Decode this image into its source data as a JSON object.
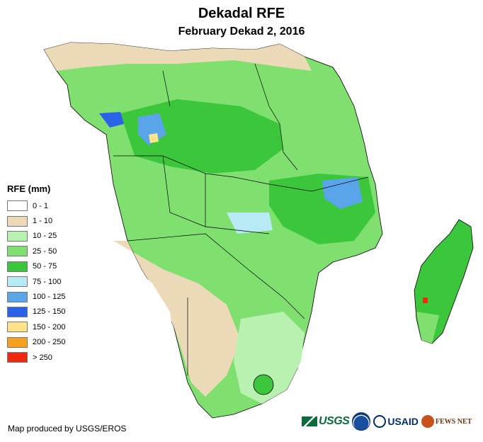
{
  "title": "Dekadal RFE",
  "subtitle": "February Dekad 2, 2016",
  "legend": {
    "title": "RFE (mm)",
    "items": [
      {
        "label": "0 - 1",
        "color": "#ffffff"
      },
      {
        "label": "1 - 10",
        "color": "#ecd9b8"
      },
      {
        "label": "10 - 25",
        "color": "#b9f2b0"
      },
      {
        "label": "25 - 50",
        "color": "#7fe06f"
      },
      {
        "label": "50 - 75",
        "color": "#3cc63c"
      },
      {
        "label": "75 - 100",
        "color": "#b8eaf5"
      },
      {
        "label": "100 - 125",
        "color": "#5aa5ea"
      },
      {
        "label": "125 - 150",
        "color": "#2a62e8"
      },
      {
        "label": "150 - 200",
        "color": "#ffe38a"
      },
      {
        "label": "200 - 250",
        "color": "#f7a01e"
      },
      {
        "label": "> 250",
        "color": "#f02a0c"
      }
    ]
  },
  "credit": "Map produced by USGS/EROS",
  "logos": {
    "usgs": "USGS",
    "usaid": "USAID",
    "fews": "FEWS NET"
  }
}
